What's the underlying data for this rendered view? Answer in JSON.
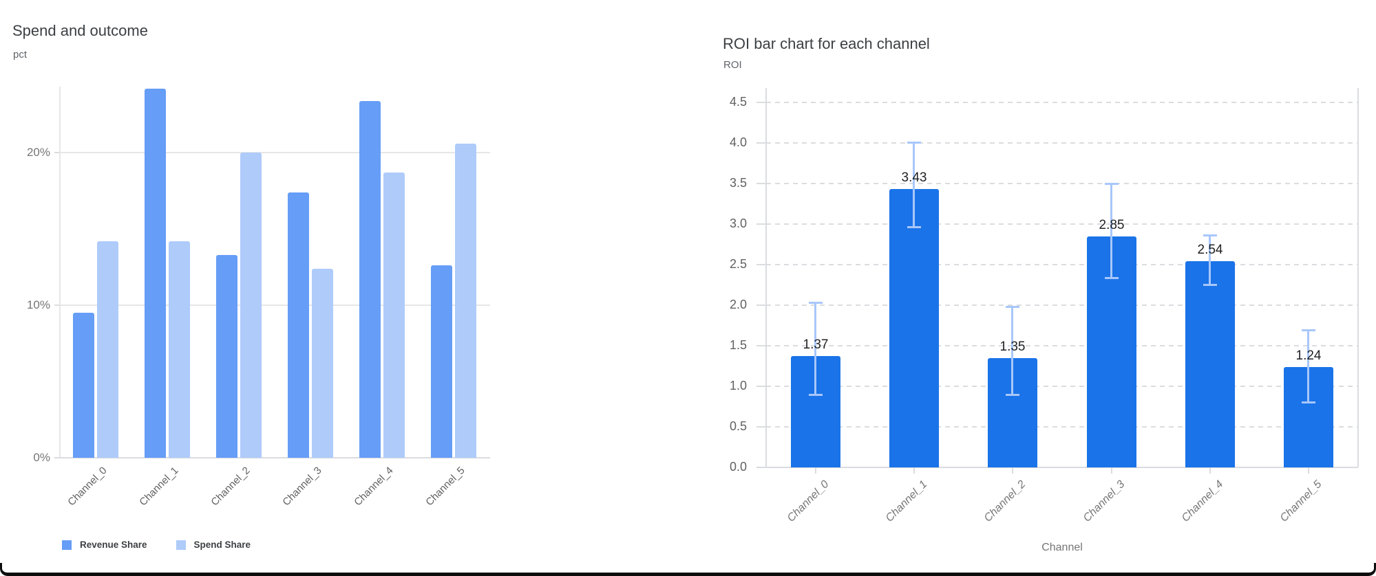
{
  "chart_data": [
    {
      "type": "bar",
      "title": "Spend and outcome",
      "y_axis_label": "pct",
      "xlabel": "",
      "categories": [
        "Channel_0",
        "Channel_1",
        "Channel_2",
        "Channel_3",
        "Channel_4",
        "Channel_5"
      ],
      "series": [
        {
          "name": "Revenue Share",
          "color": "#669df6",
          "values": [
            9.5,
            24.2,
            13.3,
            17.4,
            23.4,
            12.6
          ]
        },
        {
          "name": "Spend Share",
          "color": "#aecbfa",
          "values": [
            14.2,
            14.2,
            20.0,
            12.4,
            18.7,
            20.6
          ]
        }
      ],
      "y_ticks": [
        {
          "value": 0,
          "label": "0%"
        },
        {
          "value": 10,
          "label": "10%"
        },
        {
          "value": 20,
          "label": "20%"
        }
      ],
      "ylim": [
        0,
        24.3
      ],
      "grid": "solid",
      "legend_position": "bottom"
    },
    {
      "type": "bar",
      "title": "ROI bar chart for each channel",
      "y_axis_label": "ROI",
      "x_axis_label": "Channel",
      "categories": [
        "Channel_0",
        "Channel_1",
        "Channel_2",
        "Channel_3",
        "Channel_4",
        "Channel_5"
      ],
      "series": [
        {
          "name": "ROI",
          "color": "#1a73e8",
          "values": [
            1.37,
            3.43,
            1.35,
            2.85,
            2.54,
            1.24
          ]
        }
      ],
      "bar_labels": [
        "1.37",
        "3.43",
        "1.35",
        "2.85",
        "2.54",
        "1.24"
      ],
      "error_bars": {
        "color": "#a8c7fa",
        "low": [
          0.88,
          2.95,
          0.88,
          2.32,
          2.24,
          0.79
        ],
        "high": [
          2.04,
          4.02,
          1.99,
          3.51,
          2.87,
          1.7
        ]
      },
      "y_ticks": [
        {
          "value": 0.0,
          "label": "0.0"
        },
        {
          "value": 0.5,
          "label": "0.5"
        },
        {
          "value": 1.0,
          "label": "1.0"
        },
        {
          "value": 1.5,
          "label": "1.5"
        },
        {
          "value": 2.0,
          "label": "2.0"
        },
        {
          "value": 2.5,
          "label": "2.5"
        },
        {
          "value": 3.0,
          "label": "3.0"
        },
        {
          "value": 3.5,
          "label": "3.5"
        },
        {
          "value": 4.0,
          "label": "4.0"
        },
        {
          "value": 4.5,
          "label": "4.5"
        }
      ],
      "ylim": [
        0,
        4.68
      ],
      "grid": "dashed",
      "legend_position": "none"
    }
  ]
}
